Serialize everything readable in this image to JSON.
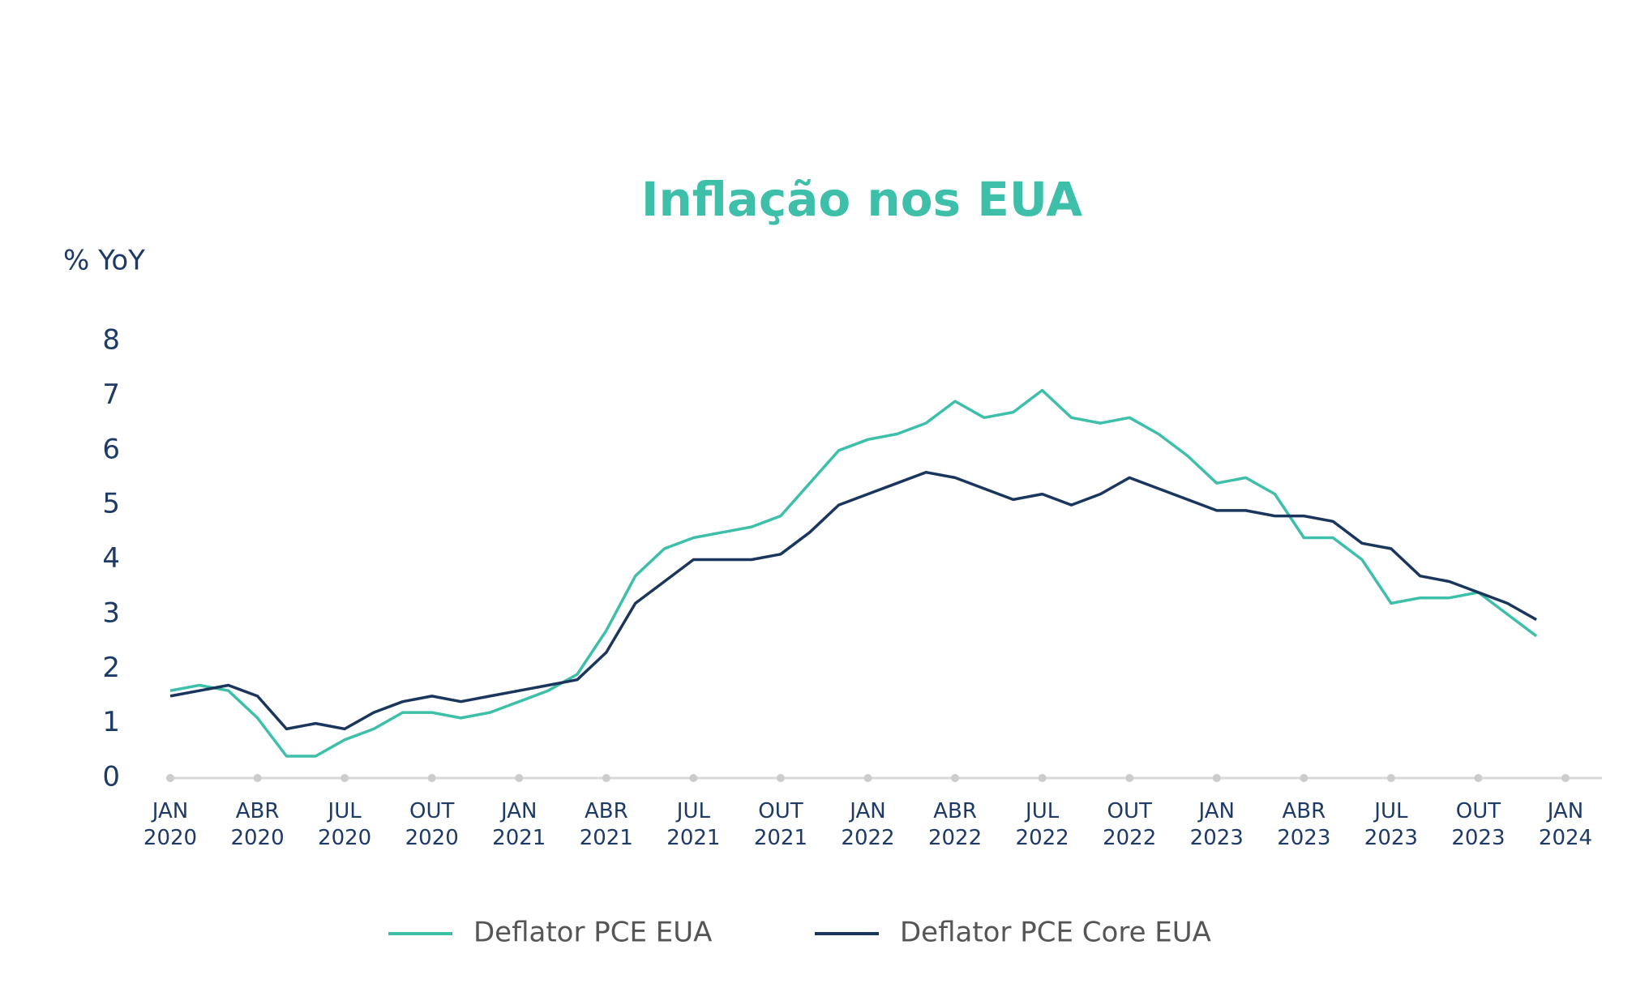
{
  "chart_data": {
    "type": "line",
    "title": "Inflação nos EUA",
    "y_label": "% YoY",
    "x": [
      "2020-01",
      "2020-02",
      "2020-03",
      "2020-04",
      "2020-05",
      "2020-06",
      "2020-07",
      "2020-08",
      "2020-09",
      "2020-10",
      "2020-11",
      "2020-12",
      "2021-01",
      "2021-02",
      "2021-03",
      "2021-04",
      "2021-05",
      "2021-06",
      "2021-07",
      "2021-08",
      "2021-09",
      "2021-10",
      "2021-11",
      "2021-12",
      "2022-01",
      "2022-02",
      "2022-03",
      "2022-04",
      "2022-05",
      "2022-06",
      "2022-07",
      "2022-08",
      "2022-09",
      "2022-10",
      "2022-11",
      "2022-12",
      "2023-01",
      "2023-02",
      "2023-03",
      "2023-04",
      "2023-05",
      "2023-06",
      "2023-07",
      "2023-08",
      "2023-09",
      "2023-10",
      "2023-11",
      "2023-12"
    ],
    "series": [
      {
        "name": "Deflator PCE EUA",
        "color": "#3dbfaa",
        "values": [
          1.6,
          1.7,
          1.6,
          1.1,
          0.4,
          0.4,
          0.7,
          0.9,
          1.2,
          1.2,
          1.1,
          1.2,
          1.4,
          1.6,
          1.9,
          2.7,
          3.7,
          4.2,
          4.4,
          4.5,
          4.6,
          4.8,
          5.4,
          6.0,
          6.2,
          6.3,
          6.5,
          6.9,
          6.6,
          6.7,
          7.1,
          6.6,
          6.5,
          6.6,
          6.3,
          5.9,
          5.4,
          5.5,
          5.2,
          4.4,
          4.4,
          4.0,
          3.2,
          3.3,
          3.3,
          3.4,
          3.0,
          2.6
        ]
      },
      {
        "name": "Deflator PCE Core EUA",
        "color": "#1b365d",
        "values": [
          1.5,
          1.6,
          1.7,
          1.5,
          0.9,
          1.0,
          0.9,
          1.2,
          1.4,
          1.5,
          1.4,
          1.5,
          1.6,
          1.7,
          1.8,
          2.3,
          3.2,
          3.6,
          4.0,
          4.0,
          4.0,
          4.1,
          4.5,
          5.0,
          5.2,
          5.4,
          5.6,
          5.5,
          5.3,
          5.1,
          5.2,
          5.0,
          5.2,
          5.5,
          5.3,
          5.1,
          4.9,
          4.9,
          4.8,
          4.8,
          4.7,
          4.3,
          4.2,
          3.7,
          3.6,
          3.4,
          3.2,
          2.9
        ]
      }
    ],
    "xlim": [
      "2020-01",
      "2024-01"
    ],
    "xticks": [
      {
        "value": "2020-01",
        "label": "JAN 2020"
      },
      {
        "value": "2020-04",
        "label": "ABR 2020"
      },
      {
        "value": "2020-07",
        "label": "JUL 2020"
      },
      {
        "value": "2020-10",
        "label": "OUT 2020"
      },
      {
        "value": "2021-01",
        "label": "JAN 2021"
      },
      {
        "value": "2021-04",
        "label": "ABR 2021"
      },
      {
        "value": "2021-07",
        "label": "JUL 2021"
      },
      {
        "value": "2021-10",
        "label": "OUT 2021"
      },
      {
        "value": "2022-01",
        "label": "JAN 2022"
      },
      {
        "value": "2022-04",
        "label": "ABR 2022"
      },
      {
        "value": "2022-07",
        "label": "JUL 2022"
      },
      {
        "value": "2022-10",
        "label": "OUT 2022"
      },
      {
        "value": "2023-01",
        "label": "JAN 2023"
      },
      {
        "value": "2023-04",
        "label": "ABR 2023"
      },
      {
        "value": "2023-07",
        "label": "JUL 2023"
      },
      {
        "value": "2023-10",
        "label": "OUT 2023"
      },
      {
        "value": "2024-01",
        "label": "JAN 2024"
      }
    ],
    "ylim": [
      0,
      8
    ],
    "yticks": [
      0,
      1,
      2,
      3,
      4,
      5,
      6,
      7,
      8
    ],
    "grid": false,
    "legend": "bottom"
  }
}
